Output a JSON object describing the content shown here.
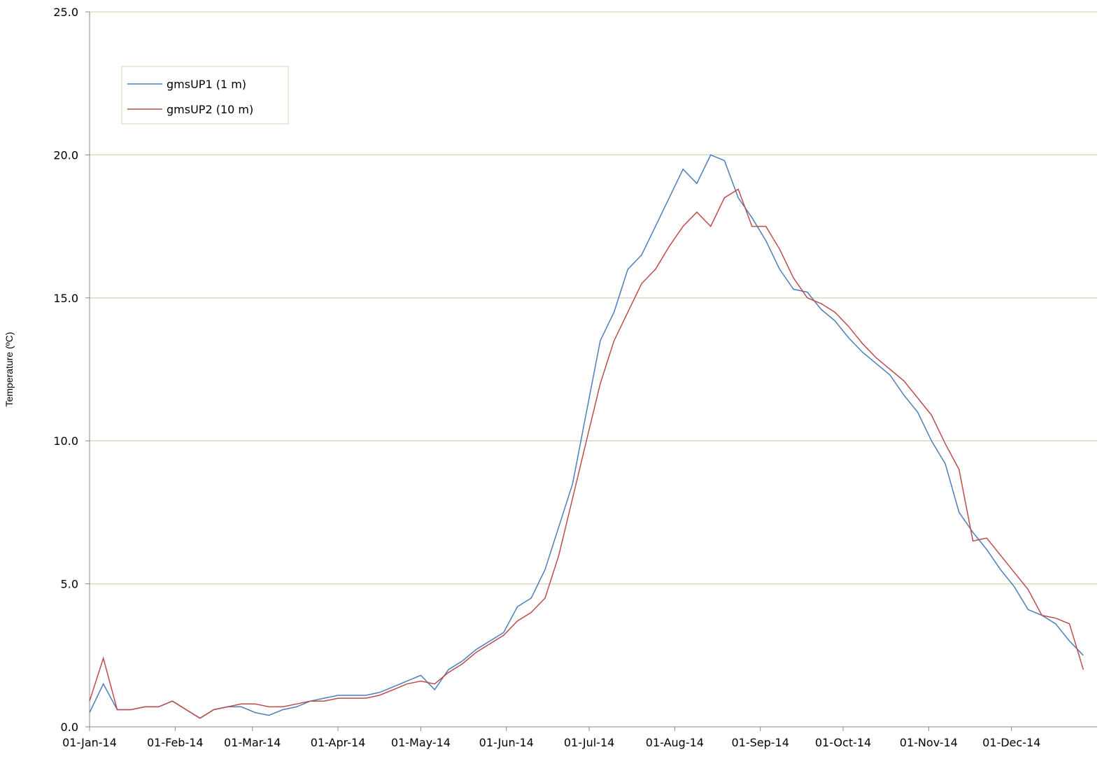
{
  "chart_data": {
    "type": "line",
    "y_label": "Temperature (ºC)",
    "x": [
      "2014-01-01",
      "2014-01-06",
      "2014-01-11",
      "2014-01-16",
      "2014-01-21",
      "2014-01-26",
      "2014-01-31",
      "2014-02-05",
      "2014-02-10",
      "2014-02-15",
      "2014-02-20",
      "2014-02-25",
      "2014-03-02",
      "2014-03-07",
      "2014-03-12",
      "2014-03-17",
      "2014-03-22",
      "2014-03-27",
      "2014-04-01",
      "2014-04-06",
      "2014-04-11",
      "2014-04-16",
      "2014-04-21",
      "2014-04-26",
      "2014-05-01",
      "2014-05-06",
      "2014-05-11",
      "2014-05-16",
      "2014-05-21",
      "2014-05-26",
      "2014-05-31",
      "2014-06-05",
      "2014-06-10",
      "2014-06-15",
      "2014-06-20",
      "2014-06-25",
      "2014-06-30",
      "2014-07-05",
      "2014-07-10",
      "2014-07-15",
      "2014-07-20",
      "2014-07-25",
      "2014-07-30",
      "2014-08-04",
      "2014-08-09",
      "2014-08-14",
      "2014-08-19",
      "2014-08-24",
      "2014-08-29",
      "2014-09-03",
      "2014-09-08",
      "2014-09-13",
      "2014-09-18",
      "2014-09-23",
      "2014-09-28",
      "2014-10-03",
      "2014-10-08",
      "2014-10-13",
      "2014-10-18",
      "2014-10-23",
      "2014-10-28",
      "2014-11-02",
      "2014-11-07",
      "2014-11-12",
      "2014-11-17",
      "2014-11-22",
      "2014-11-27",
      "2014-12-02",
      "2014-12-07",
      "2014-12-12",
      "2014-12-17",
      "2014-12-22",
      "2014-12-27"
    ],
    "series": [
      {
        "name": "gmsUP1 (1 m)",
        "color": "#4a7ebb",
        "values": [
          0.5,
          1.5,
          0.6,
          0.6,
          0.7,
          0.7,
          0.9,
          0.6,
          0.3,
          0.6,
          0.7,
          0.7,
          0.5,
          0.4,
          0.6,
          0.7,
          0.9,
          1.0,
          1.1,
          1.1,
          1.1,
          1.2,
          1.4,
          1.6,
          1.8,
          1.3,
          2.0,
          2.3,
          2.7,
          3.0,
          3.3,
          4.2,
          4.5,
          5.5,
          7.0,
          8.5,
          11.0,
          13.5,
          14.5,
          16.0,
          16.5,
          17.5,
          18.5,
          19.5,
          19.0,
          20.0,
          19.8,
          18.5,
          17.8,
          17.0,
          16.0,
          15.3,
          15.2,
          14.6,
          14.2,
          13.6,
          13.1,
          12.7,
          12.3,
          11.6,
          11.0,
          10.0,
          9.2,
          7.5,
          6.8,
          6.2,
          5.5,
          4.9,
          4.1,
          3.9,
          3.6,
          3.0,
          2.5
        ]
      },
      {
        "name": "gmsUP2 (10 m)",
        "color": "#be4b48",
        "values": [
          0.9,
          2.4,
          0.6,
          0.6,
          0.7,
          0.7,
          0.9,
          0.6,
          0.3,
          0.6,
          0.7,
          0.8,
          0.8,
          0.7,
          0.7,
          0.8,
          0.9,
          0.9,
          1.0,
          1.0,
          1.0,
          1.1,
          1.3,
          1.5,
          1.6,
          1.5,
          1.9,
          2.2,
          2.6,
          2.9,
          3.2,
          3.7,
          4.0,
          4.5,
          6.0,
          8.0,
          10.0,
          12.0,
          13.5,
          14.5,
          15.5,
          16.0,
          16.8,
          17.5,
          18.0,
          17.5,
          18.5,
          18.8,
          17.5,
          17.5,
          16.7,
          15.7,
          15.0,
          14.8,
          14.5,
          14.0,
          13.4,
          12.9,
          12.5,
          12.1,
          11.5,
          10.9,
          9.9,
          9.0,
          6.5,
          6.6,
          6.0,
          5.4,
          4.8,
          3.9,
          3.8,
          3.6,
          2.0
        ]
      }
    ],
    "xlim": [
      "2014-01-01",
      "2015-01-01"
    ],
    "xticks": [
      {
        "value": "2014-01-01",
        "label": "01-Jan-14"
      },
      {
        "value": "2014-02-01",
        "label": "01-Feb-14"
      },
      {
        "value": "2014-03-01",
        "label": "01-Mar-14"
      },
      {
        "value": "2014-04-01",
        "label": "01-Apr-14"
      },
      {
        "value": "2014-05-01",
        "label": "01-May-14"
      },
      {
        "value": "2014-06-01",
        "label": "01-Jun-14"
      },
      {
        "value": "2014-07-01",
        "label": "01-Jul-14"
      },
      {
        "value": "2014-08-01",
        "label": "01-Aug-14"
      },
      {
        "value": "2014-09-01",
        "label": "01-Sep-14"
      },
      {
        "value": "2014-10-01",
        "label": "01-Oct-14"
      },
      {
        "value": "2014-11-01",
        "label": "01-Nov-14"
      },
      {
        "value": "2014-12-01",
        "label": "01-Dec-14"
      }
    ],
    "ylim": [
      0,
      25
    ],
    "yticks": [
      {
        "value": 0,
        "label": "0.0"
      },
      {
        "value": 5,
        "label": "5.0"
      },
      {
        "value": 10,
        "label": "10.0"
      },
      {
        "value": 15,
        "label": "15.0"
      },
      {
        "value": 20,
        "label": "20.0"
      },
      {
        "value": 25,
        "label": "25.0"
      }
    ],
    "grid": true,
    "legend": "upper left"
  }
}
